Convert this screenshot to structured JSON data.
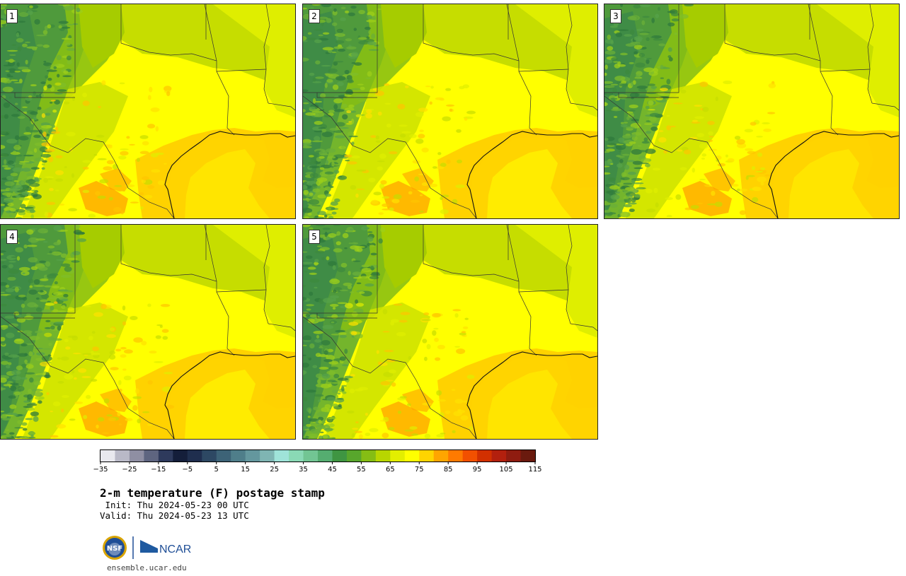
{
  "panels": [
    {
      "label": "1"
    },
    {
      "label": "2"
    },
    {
      "label": "3"
    },
    {
      "label": "4"
    },
    {
      "label": "5"
    }
  ],
  "colorbar": {
    "ticks": [
      "−35",
      "−25",
      "−15",
      "−5",
      "5",
      "15",
      "25",
      "35",
      "45",
      "55",
      "65",
      "75",
      "85",
      "95",
      "105",
      "115"
    ],
    "colors": [
      "#e8e8ee",
      "#b9b9c7",
      "#8f8fa3",
      "#5e6580",
      "#2e3a5c",
      "#141e3a",
      "#1f2e4e",
      "#2d4863",
      "#3d6377",
      "#4f7e8a",
      "#64979e",
      "#7fb5b3",
      "#9fe3d9",
      "#8ad9b5",
      "#72c593",
      "#55ad70",
      "#3f9542",
      "#58a62c",
      "#85bd14",
      "#b8d600",
      "#e3ee00",
      "#ffff00",
      "#ffd400",
      "#ffa500",
      "#ff7a00",
      "#f25000",
      "#d23000",
      "#b3200e",
      "#8f1c10",
      "#6a1a0e"
    ]
  },
  "title": "2-m temperature (F) postage stamp",
  "init_line": " Init: Thu 2024-05-23 00 UTC",
  "valid_line": "Valid: Thu 2024-05-23 13 UTC",
  "logos": {
    "nsf": "NSF",
    "ncar": "NCAR"
  },
  "website": "ensemble.ucar.edu"
}
